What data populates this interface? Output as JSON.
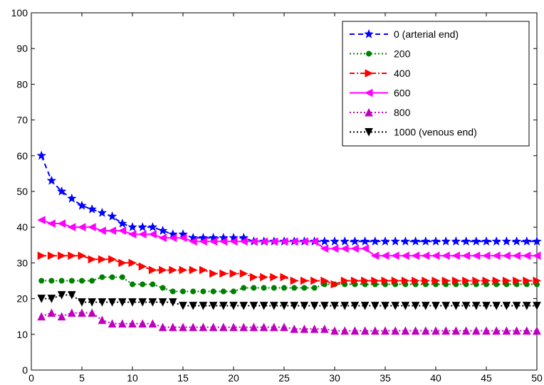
{
  "chart_data": {
    "type": "line",
    "title": "",
    "xlabel": "",
    "ylabel": "",
    "xlim": [
      0,
      50
    ],
    "ylim": [
      0,
      100
    ],
    "xticks": [
      0,
      5,
      10,
      15,
      20,
      25,
      30,
      35,
      40,
      45,
      50
    ],
    "yticks": [
      0,
      10,
      20,
      30,
      40,
      50,
      60,
      70,
      80,
      90,
      100
    ],
    "grid": false,
    "legend_position": "top-right",
    "x": [
      1,
      2,
      3,
      4,
      5,
      6,
      7,
      8,
      9,
      10,
      11,
      12,
      13,
      14,
      15,
      16,
      17,
      18,
      19,
      20,
      21,
      22,
      23,
      24,
      25,
      26,
      27,
      28,
      29,
      30,
      31,
      32,
      33,
      34,
      35,
      36,
      37,
      38,
      39,
      40,
      41,
      42,
      43,
      44,
      45,
      46,
      47,
      48,
      49,
      50
    ],
    "series": [
      {
        "name": "0 (arterial end)",
        "color": "#0000ff",
        "line_style": "dashed",
        "marker": "star",
        "values": [
          60,
          53,
          50,
          48,
          46,
          45,
          44,
          43,
          41,
          40,
          40,
          40,
          39,
          38,
          38,
          37,
          37,
          37,
          37,
          37,
          37,
          36,
          36,
          36,
          36,
          36,
          36,
          36,
          36,
          36,
          36,
          36,
          36,
          36,
          36,
          36,
          36,
          36,
          36,
          36,
          36,
          36,
          36,
          36,
          36,
          36,
          36,
          36,
          36,
          36
        ]
      },
      {
        "name": "200",
        "color": "#008000",
        "line_style": "dotted",
        "marker": "circle",
        "values": [
          25,
          25,
          25,
          25,
          25,
          25,
          26,
          26,
          26,
          24,
          24,
          24,
          23,
          22,
          22,
          22,
          22,
          22,
          22,
          22,
          23,
          23,
          23,
          23,
          23,
          23,
          23,
          23,
          24,
          24,
          24,
          24,
          24,
          24,
          24,
          24,
          24,
          24,
          24,
          24,
          24,
          24,
          24,
          24,
          24,
          24,
          24,
          24,
          24,
          24
        ]
      },
      {
        "name": "400",
        "color": "#ff0000",
        "line_style": "dashdot",
        "marker": "triangle-right",
        "values": [
          32,
          32,
          32,
          32,
          32,
          31,
          31,
          31,
          30,
          30,
          29,
          28,
          28,
          28,
          28,
          28,
          28,
          27,
          27,
          27,
          27,
          26,
          26,
          26,
          26,
          25,
          25,
          25,
          25,
          24,
          25,
          25,
          25,
          25,
          25,
          25,
          25,
          25,
          25,
          25,
          25,
          25,
          25,
          25,
          25,
          25,
          25,
          25,
          25,
          25
        ]
      },
      {
        "name": "600",
        "color": "#ff00ff",
        "line_style": "solid",
        "marker": "triangle-left",
        "values": [
          42,
          41,
          41,
          40,
          40,
          40,
          39,
          39,
          39,
          38,
          38,
          38,
          37,
          37,
          37,
          36,
          36,
          36,
          36,
          36,
          36,
          36,
          36,
          36,
          36,
          36,
          36,
          36,
          34,
          34,
          34,
          34,
          34,
          32,
          32,
          32,
          32,
          32,
          32,
          32,
          32,
          32,
          32,
          32,
          32,
          32,
          32,
          32,
          32,
          32
        ]
      },
      {
        "name": "800",
        "color": "#bf00bf",
        "line_style": "dotted",
        "marker": "triangle-up",
        "values": [
          15,
          16,
          15,
          16,
          16,
          16,
          14,
          13,
          13,
          13,
          13,
          13,
          12,
          12,
          12,
          12,
          12,
          12,
          12,
          12,
          12,
          12,
          12,
          12,
          12,
          11.5,
          11.5,
          11.5,
          11.5,
          11,
          11,
          11,
          11,
          11,
          11,
          11,
          11,
          11,
          11,
          11,
          11,
          11,
          11,
          11,
          11,
          11,
          11,
          11,
          11,
          11
        ]
      },
      {
        "name": "1000 (venous end)",
        "color": "#000000",
        "line_style": "dotted",
        "marker": "triangle-down",
        "values": [
          20,
          20,
          21,
          21,
          19,
          19,
          19,
          19,
          19,
          19,
          19,
          19,
          19,
          19,
          18,
          18,
          18,
          18,
          18,
          18,
          18,
          18,
          18,
          18,
          18,
          18,
          18,
          18,
          18,
          18,
          18,
          18,
          18,
          18,
          18,
          18,
          18,
          18,
          18,
          18,
          18,
          18,
          18,
          18,
          18,
          18,
          18,
          18,
          18,
          18
        ]
      }
    ]
  }
}
